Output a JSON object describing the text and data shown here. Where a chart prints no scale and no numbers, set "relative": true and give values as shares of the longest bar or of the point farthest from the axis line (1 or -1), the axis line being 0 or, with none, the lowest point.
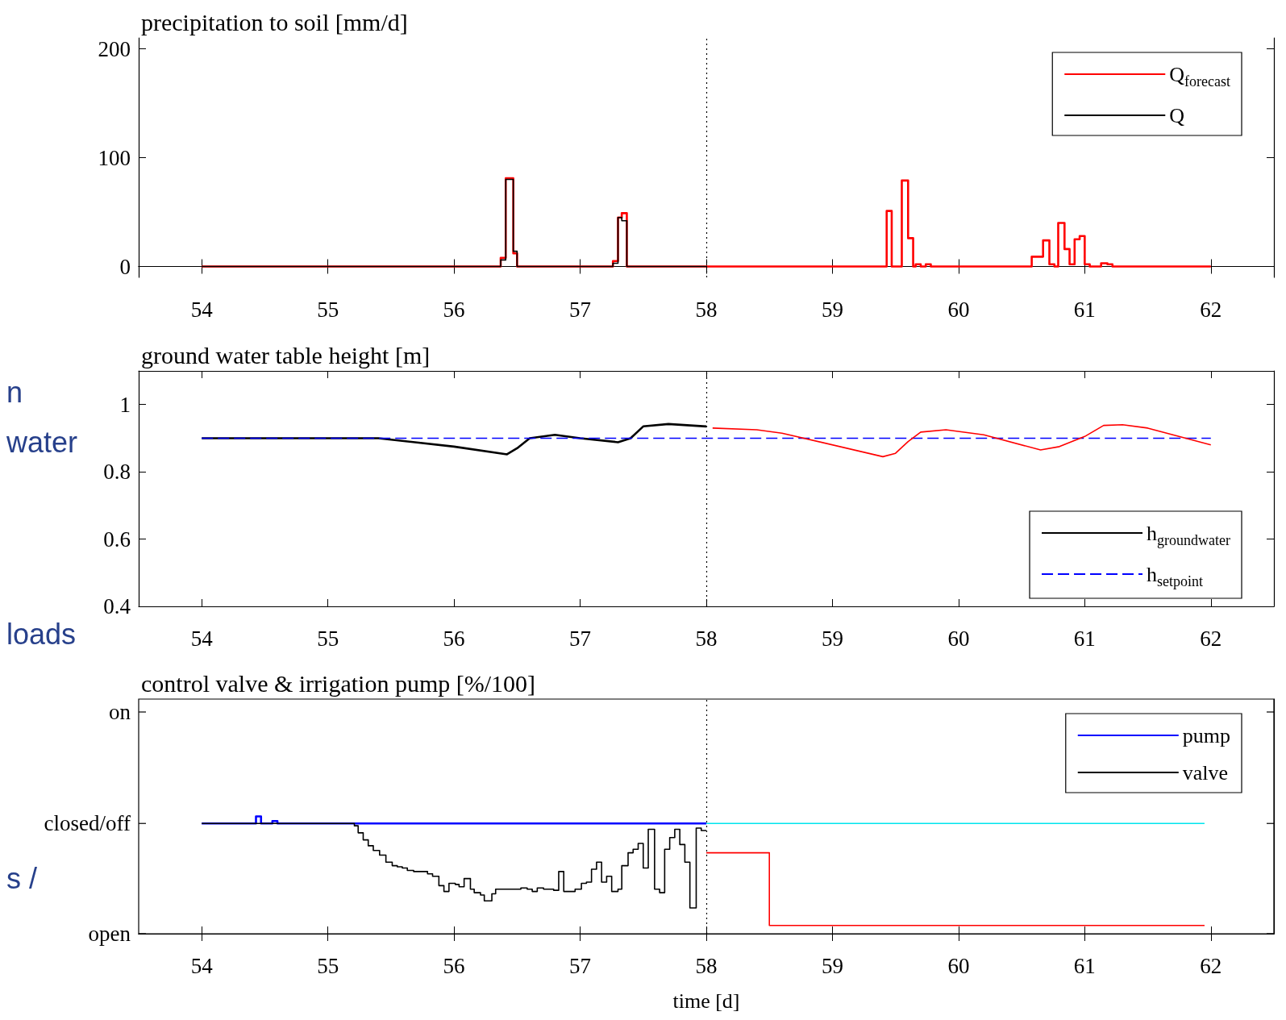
{
  "chart_data": [
    {
      "type": "step",
      "title": "precipitation to soil [mm/d]",
      "xlim": [
        53.5,
        62.5
      ],
      "xticks": [
        54,
        55,
        56,
        57,
        58,
        59,
        60,
        61,
        62
      ],
      "ylim": [
        -10,
        210
      ],
      "yticks": [
        0,
        100,
        200
      ],
      "grid": false,
      "legend": "top right",
      "ref_lines": [
        {
          "axis": "x",
          "value": 58,
          "color": "#000000",
          "line_style": "dotted"
        }
      ],
      "series": [
        {
          "name": "Q$_{forecast}$",
          "color": "#ff0000",
          "x": [
            54,
            56.37,
            56.41,
            56.47,
            56.5,
            57.26,
            57.3,
            57.33,
            57.37,
            59.43,
            59.47,
            59.55,
            59.6,
            59.64,
            59.66,
            59.7,
            59.74,
            59.78,
            60.58,
            60.67,
            60.72,
            60.76,
            60.79,
            60.84,
            60.88,
            60.92,
            60.96,
            61.0,
            61.04,
            61.13,
            61.18,
            61.22,
            62
          ],
          "values": [
            0,
            8,
            81,
            12,
            0,
            5,
            45,
            49,
            0,
            51,
            0,
            79,
            26,
            0,
            2,
            0,
            2,
            0,
            9,
            24,
            2,
            0,
            40,
            16,
            2,
            25,
            28,
            2,
            0,
            3,
            2,
            0,
            0
          ]
        },
        {
          "name": "Q",
          "color": "#000000",
          "x": [
            54,
            56.37,
            56.41,
            56.47,
            56.5,
            57.26,
            57.3,
            57.33,
            57.37,
            58
          ],
          "values": [
            0,
            6,
            80,
            14,
            0,
            3,
            45,
            42,
            0,
            0
          ]
        }
      ]
    },
    {
      "type": "line",
      "title": "ground water table height [m]",
      "xlim": [
        53.5,
        62.5
      ],
      "xticks": [
        54,
        55,
        56,
        57,
        58,
        59,
        60,
        61,
        62
      ],
      "ylim": [
        0.4,
        1.1
      ],
      "yticks": [
        0.4,
        0.6,
        0.8,
        1
      ],
      "grid": false,
      "legend": "bottom right",
      "annotations": [
        "n",
        "water",
        "loads"
      ],
      "ref_lines": [
        {
          "axis": "x",
          "value": 58,
          "color": "#000000",
          "line_style": "dotted"
        }
      ],
      "series": [
        {
          "name": "h$_{groundwater}$",
          "color": "#000000",
          "x": [
            54,
            55,
            55.4,
            56,
            56.42,
            56.5,
            56.6,
            56.8,
            57,
            57.3,
            57.4,
            57.5,
            57.7,
            58
          ],
          "values": [
            0.9,
            0.9,
            0.9,
            0.875,
            0.852,
            0.87,
            0.9,
            0.91,
            0.9,
            0.888,
            0.9,
            0.935,
            0.942,
            0.935
          ]
        },
        {
          "name": "h$_{setpoint}$",
          "color": "#0000ff",
          "line_style": "dashed",
          "x": [
            54,
            62
          ],
          "values": [
            0.9,
            0.9
          ]
        },
        {
          "color": "#ff0000",
          "x": [
            58.05,
            58.4,
            58.6,
            59.4,
            59.5,
            59.6,
            59.7,
            59.9,
            60.2,
            60.65,
            60.8,
            61,
            61.15,
            61.3,
            61.5,
            62
          ],
          "values": [
            0.93,
            0.925,
            0.915,
            0.845,
            0.855,
            0.89,
            0.918,
            0.925,
            0.91,
            0.865,
            0.875,
            0.905,
            0.938,
            0.94,
            0.93,
            0.88
          ]
        }
      ]
    },
    {
      "type": "step",
      "title": "control valve & irrigation pump [%/100]",
      "xlabel": "time [d]",
      "xlim": [
        53.5,
        62.5
      ],
      "xticks": [
        54,
        55,
        56,
        57,
        58,
        59,
        60,
        61,
        62
      ],
      "relative": true,
      "grid": false,
      "legend": "top right",
      "annotations": [
        "s /",
        "open",
        "closed/off",
        "on"
      ],
      "ref_lines": [
        {
          "axis": "x",
          "value": 58,
          "color": "#000000",
          "line_style": "dotted"
        }
      ],
      "series": [
        {
          "name": "pump",
          "color": "#0000ff",
          "x": [
            54,
            54.43,
            54.47,
            54.56,
            54.6,
            58
          ],
          "values": [
            0.94,
            1,
            0.94,
            0.96,
            0.94,
            0.94
          ]
        },
        {
          "name": "valve",
          "color": "#000000",
          "x": [
            54,
            55.21,
            55.24,
            55.28,
            55.32,
            55.36,
            55.41,
            55.46,
            55.51,
            55.55,
            55.59,
            55.63,
            55.68,
            55.73,
            55.79,
            55.83,
            55.88,
            55.92,
            55.96,
            56.01,
            56.04,
            56.08,
            56.13,
            56.16,
            56.21,
            56.24,
            56.3,
            56.33,
            56.53,
            56.58,
            56.62,
            56.66,
            56.71,
            56.79,
            56.83,
            56.87,
            56.96,
            57.01,
            57.05,
            57.09,
            57.13,
            57.17,
            57.21,
            57.25,
            57.3,
            57.33,
            57.38,
            57.42,
            57.46,
            57.5,
            57.54,
            57.59,
            57.63,
            57.67,
            57.71,
            57.75,
            57.79,
            57.83,
            57.87,
            57.92,
            57.96,
            58
          ],
          "values": [
            0.94,
            0.92,
            0.86,
            0.8,
            0.75,
            0.71,
            0.67,
            0.61,
            0.58,
            0.57,
            0.56,
            0.54,
            0.53,
            0.53,
            0.51,
            0.49,
            0.41,
            0.36,
            0.43,
            0.42,
            0.4,
            0.47,
            0.38,
            0.35,
            0.33,
            0.28,
            0.34,
            0.38,
            0.39,
            0.38,
            0.36,
            0.39,
            0.38,
            0.37,
            0.53,
            0.36,
            0.38,
            0.43,
            0.44,
            0.55,
            0.61,
            0.44,
            0.49,
            0.36,
            0.38,
            0.58,
            0.69,
            0.72,
            0.77,
            0.56,
            0.89,
            0.38,
            0.35,
            0.72,
            0.82,
            0.89,
            0.76,
            0.61,
            0.22,
            0.9,
            0.88,
            0.88
          ]
        },
        {
          "color": "#00e5ee",
          "x": [
            58,
            61.95
          ],
          "values": [
            0.94,
            0.94
          ]
        },
        {
          "color": "#ff0000",
          "x": [
            58,
            58.5,
            61.95
          ],
          "values": [
            0.69,
            0.07,
            0.07
          ]
        }
      ]
    }
  ]
}
